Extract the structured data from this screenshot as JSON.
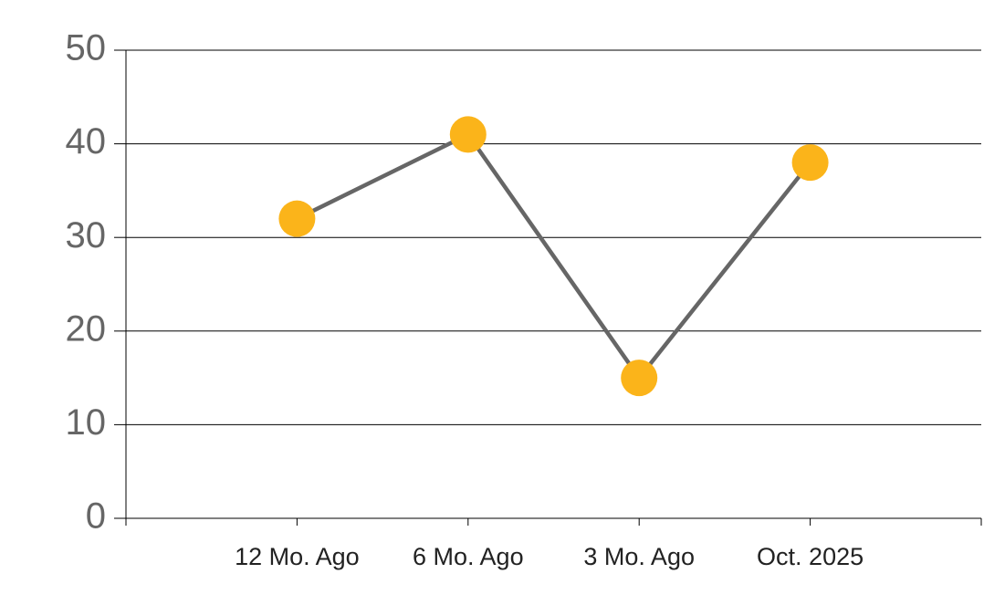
{
  "chart_data": {
    "type": "line",
    "categories": [
      "12 Mo. Ago",
      "6 Mo. Ago",
      "3 Mo. Ago",
      "Oct. 2025"
    ],
    "values": [
      32,
      41,
      15,
      38
    ],
    "color": "#fbb41a",
    "line_color": "#666666",
    "ylim": [
      0,
      50
    ],
    "yticks": [
      0,
      10,
      20,
      30,
      40,
      50
    ],
    "grid": true
  }
}
